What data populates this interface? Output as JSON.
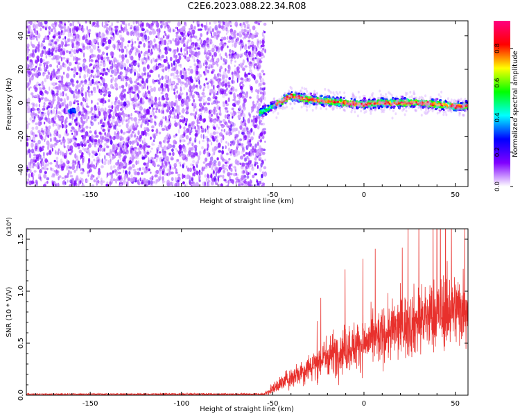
{
  "title": "C2E6.2023.088.22.34.R08",
  "chart_data": [
    {
      "type": "heatmap",
      "xlabel": "Height of straight line (km)",
      "ylabel": "Frequency (Hz)",
      "xlim": [
        -185,
        57
      ],
      "ylim": [
        -50,
        49
      ],
      "xticks": [
        -150,
        -100,
        -50,
        0,
        50
      ],
      "yticks": [
        -40,
        -20,
        0,
        20,
        40
      ],
      "colorbar": {
        "label": "Normalized spectral amplitude",
        "range": [
          0,
          0.96
        ],
        "ticks": [
          "0.0",
          "0.2",
          "0.4",
          "0.6",
          "0.8"
        ],
        "colormap": [
          "#ffffff",
          "#8000ff",
          "#0000ff",
          "#00ffff",
          "#00ff00",
          "#ffff00",
          "#ff0000",
          "#ff0080"
        ]
      },
      "noise_region_x": [
        -185,
        -54
      ],
      "signal_trace": {
        "x": [
          -57,
          -50,
          -45,
          -40,
          -35,
          -30,
          -20,
          -10,
          0,
          10,
          20,
          30,
          40,
          50,
          57
        ],
        "y": [
          -6,
          -2,
          1,
          4,
          3,
          2,
          1,
          0,
          -1,
          0,
          0,
          0,
          -1,
          -2,
          -2
        ]
      }
    },
    {
      "type": "line",
      "xlabel": "Height of straight line (km)",
      "ylabel": "SNR (10 * V/V)",
      "scale_label": "(x10⁴)",
      "xlim": [
        -185,
        57
      ],
      "ylim": [
        0,
        1.6
      ],
      "xticks": [
        -150,
        -100,
        -50,
        0,
        50
      ],
      "yticks": [
        "0.0",
        "0.5",
        "1.0",
        "1.5"
      ],
      "series": [
        {
          "color": "#e8302c",
          "envelope": {
            "x": [
              -185,
              -55,
              -50,
              -45,
              -40,
              -35,
              -30,
              -25,
              -20,
              -10,
              0,
              10,
              20,
              30,
              40,
              50,
              57
            ],
            "mean": [
              0.01,
              0.01,
              0.06,
              0.12,
              0.17,
              0.22,
              0.27,
              0.32,
              0.38,
              0.45,
              0.5,
              0.57,
              0.65,
              0.72,
              0.78,
              0.83,
              0.86
            ],
            "spread": [
              0.005,
              0.01,
              0.05,
              0.08,
              0.1,
              0.12,
              0.14,
              0.17,
              0.2,
              0.22,
              0.23,
              0.26,
              0.3,
              0.33,
              0.35,
              0.35,
              0.36
            ]
          }
        }
      ]
    }
  ]
}
